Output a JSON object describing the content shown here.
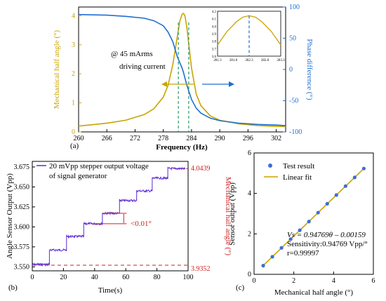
{
  "panels": {
    "a": {
      "label": "(a)",
      "xlabel": "Frequency (Hz)",
      "ylabel_left": "Mechanical half angle (°)",
      "ylabel_right": "Phase difference (°)",
      "annotation_1": "@ 45 mArms",
      "annotation_2": "driving current",
      "colors": {
        "left": "#c8a400",
        "right": "#1f6fd1",
        "dash": "#2e9a6e"
      }
    },
    "b": {
      "label": "(b)",
      "xlabel": "Time(s)",
      "ylabel_left": "Angle Sensor Output (Vpp)",
      "ylabel_right": "Mechanical half angle (°)",
      "legend_1": "20 mVpp stepper output voltage",
      "legend_2": "of signal generator",
      "step_note": "<0.01°",
      "right_top": "4.0439",
      "right_bottom": "3.9352",
      "colors": {
        "trace": "#5b2bd6",
        "ref": "#cc2222"
      }
    },
    "c": {
      "label": "(c)",
      "xlabel": "Mechanical half angle (°)",
      "ylabel": "Sensor output (Vpp)",
      "legend_points": "Test result",
      "legend_line": "Linear fit",
      "eq": "Vs = 0.94769θ – 0.00159",
      "sensitivity": "Sensitivity:0.94769 Vpp/°",
      "r": "r=0.99997",
      "colors": {
        "points": "#3a6fd8",
        "line": "#c8a400"
      }
    }
  },
  "chart_data": [
    {
      "type": "line",
      "panel": "a",
      "x_ticks": [
        "260",
        "266",
        "272",
        "278",
        "284",
        "290",
        "296",
        "302"
      ],
      "y_left_ticks": [
        "0",
        "1",
        "2",
        "3",
        "4"
      ],
      "y_right_ticks": [
        "-100",
        "-50",
        "0",
        "50",
        "100"
      ],
      "xlim": [
        260,
        304
      ],
      "ylim_left": [
        0,
        4.3
      ],
      "ylim_right": [
        -100,
        100
      ],
      "series": [
        {
          "axis": "left",
          "x": [
            260,
            266,
            270,
            274,
            276,
            278,
            279,
            280,
            281,
            281.5,
            282,
            282.3,
            282.6,
            283,
            283.5,
            284,
            285,
            286,
            288,
            290,
            294,
            298,
            302,
            304
          ],
          "values": [
            0.2,
            0.3,
            0.4,
            0.6,
            0.8,
            1.2,
            1.6,
            2.3,
            3.3,
            3.8,
            4.05,
            4.08,
            4.0,
            3.6,
            2.9,
            2.2,
            1.3,
            0.9,
            0.55,
            0.4,
            0.28,
            0.22,
            0.19,
            0.18
          ]
        },
        {
          "axis": "right",
          "x": [
            260,
            266,
            270,
            274,
            276,
            278,
            279,
            280,
            281,
            282,
            282.3,
            283,
            284,
            285,
            286,
            288,
            290,
            294,
            298,
            302,
            304
          ],
          "values": [
            88,
            87,
            85,
            82,
            78,
            70,
            60,
            45,
            20,
            2,
            -5,
            -25,
            -48,
            -62,
            -70,
            -78,
            -82,
            -86,
            -88,
            -89,
            -90
          ]
        }
      ],
      "markers_x": [
        281.2,
        283.4
      ],
      "inset": {
        "x_ticks": [
          "281.3",
          "281.8",
          "282.3",
          "282.8",
          "283.3"
        ],
        "y_ticks": [
          "3.6",
          "3.7",
          "3.8",
          "3.9",
          "4.0",
          "4.1",
          "4.2"
        ],
        "xlim": [
          281.3,
          283.3
        ],
        "ylim": [
          3.6,
          4.2
        ],
        "x": [
          281.3,
          281.6,
          281.9,
          282.1,
          282.3,
          282.5,
          282.7,
          283.0,
          283.3
        ],
        "values": [
          3.75,
          3.93,
          4.06,
          4.12,
          4.14,
          4.12,
          4.06,
          3.93,
          3.75
        ],
        "peak_x": 282.3
      }
    },
    {
      "type": "line",
      "panel": "b",
      "x_ticks": [
        "0",
        "20",
        "40",
        "60",
        "80",
        "100"
      ],
      "y_ticks": [
        "3.550",
        "3.575",
        "3.600",
        "3.625",
        "3.650",
        "3.675"
      ],
      "xlim": [
        0,
        100
      ],
      "ylim": [
        3.545,
        3.682
      ],
      "steps": [
        {
          "x0": 0,
          "x1": 11,
          "y": 3.553
        },
        {
          "x0": 11,
          "x1": 22,
          "y": 3.571
        },
        {
          "x0": 22,
          "x1": 33,
          "y": 3.588
        },
        {
          "x0": 33,
          "x1": 45,
          "y": 3.604
        },
        {
          "x0": 45,
          "x1": 56,
          "y": 3.617
        },
        {
          "x0": 56,
          "x1": 67,
          "y": 3.633
        },
        {
          "x0": 67,
          "x1": 77,
          "y": 3.645
        },
        {
          "x0": 77,
          "x1": 87,
          "y": 3.661
        },
        {
          "x0": 87,
          "x1": 98,
          "y": 3.673
        }
      ],
      "ref_low": 3.552,
      "ref_high": 3.673
    },
    {
      "type": "scatter",
      "panel": "c",
      "x_ticks": [
        "0",
        "2",
        "4",
        "6"
      ],
      "y_ticks": [
        "0",
        "2",
        "4",
        "6"
      ],
      "xlim": [
        0,
        6
      ],
      "ylim": [
        0,
        6
      ],
      "x": [
        0.46,
        0.92,
        1.38,
        1.84,
        2.3,
        2.76,
        3.22,
        3.68,
        4.14,
        4.6,
        5.06,
        5.52
      ],
      "values": [
        0.43,
        0.87,
        1.31,
        1.74,
        2.18,
        2.61,
        3.05,
        3.49,
        3.92,
        4.36,
        4.79,
        5.23
      ],
      "fit": {
        "slope": 0.94769,
        "intercept": -0.00159
      }
    }
  ]
}
